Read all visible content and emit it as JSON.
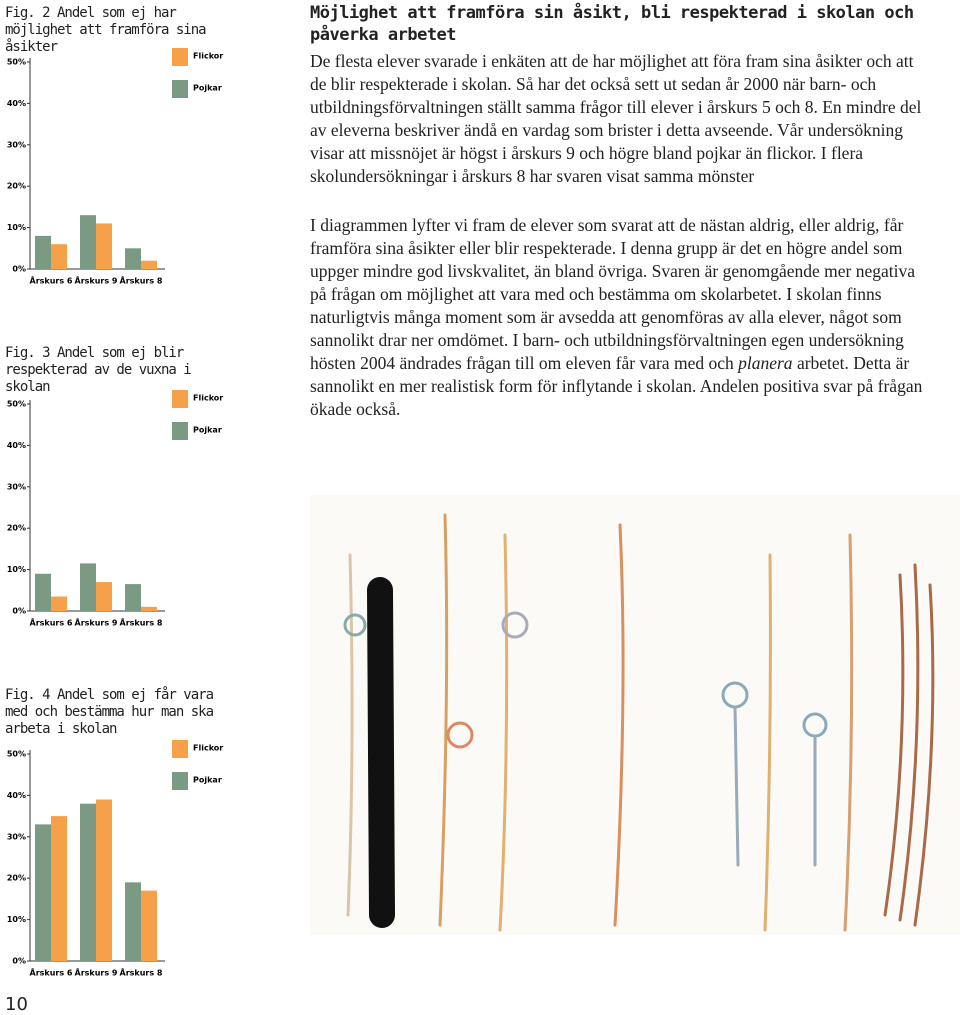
{
  "page_number": "10",
  "figures": [
    {
      "caption": "Fig. 2 Andel som ej har möjlighet att framföra sina åsikter",
      "chart": {
        "type": "bar",
        "categories": [
          "Årskurs 6",
          "Årskurs 9",
          "Årskurs 8"
        ],
        "series": [
          {
            "name": "Flickor",
            "color": "#f7a04a",
            "values": [
              6,
              11,
              2
            ]
          },
          {
            "name": "Pojkar",
            "color": "#7a9a84",
            "values": [
              8,
              13,
              5
            ]
          }
        ],
        "ylim": [
          0,
          50
        ],
        "yticks": [
          {
            "value": 0,
            "label": "0%"
          },
          {
            "value": 10,
            "label": "10%"
          },
          {
            "value": 20,
            "label": "20%"
          },
          {
            "value": 30,
            "label": "30%"
          },
          {
            "value": 40,
            "label": "40%"
          },
          {
            "value": 50,
            "label": "50%"
          }
        ]
      }
    },
    {
      "caption": "Fig. 3 Andel som ej blir respekterad av de vuxna i skolan",
      "chart": {
        "type": "bar",
        "categories": [
          "Årskurs 6",
          "Årskurs 9",
          "Årskurs 8"
        ],
        "series": [
          {
            "name": "Flickor",
            "color": "#f7a04a",
            "values": [
              3.5,
              7,
              1
            ]
          },
          {
            "name": "Pojkar",
            "color": "#7a9a84",
            "values": [
              9,
              11.5,
              6.5
            ]
          }
        ],
        "ylim": [
          0,
          50
        ],
        "yticks": [
          {
            "value": 0,
            "label": "0%"
          },
          {
            "value": 10,
            "label": "10%"
          },
          {
            "value": 20,
            "label": "20%"
          },
          {
            "value": 30,
            "label": "30%"
          },
          {
            "value": 40,
            "label": "40%"
          },
          {
            "value": 50,
            "label": "50%"
          }
        ]
      }
    },
    {
      "caption": "Fig. 4 Andel som ej får vara med och bestämma hur man ska arbeta i skolan",
      "chart": {
        "type": "bar",
        "categories": [
          "Årskurs 6",
          "Årskurs 9",
          "Årskurs 8"
        ],
        "series": [
          {
            "name": "Flickor",
            "color": "#f7a04a",
            "values": [
              35,
              39,
              17
            ]
          },
          {
            "name": "Pojkar",
            "color": "#7a9a84",
            "values": [
              33,
              38,
              19
            ]
          }
        ],
        "ylim": [
          0,
          50
        ],
        "yticks": [
          {
            "value": 0,
            "label": "0%"
          },
          {
            "value": 10,
            "label": "10%"
          },
          {
            "value": 20,
            "label": "20%"
          },
          {
            "value": 30,
            "label": "30%"
          },
          {
            "value": 40,
            "label": "40%"
          },
          {
            "value": 50,
            "label": "50%"
          }
        ]
      }
    }
  ],
  "article": {
    "title": "Möjlighet att framföra sin åsikt, bli respekterad i skolan och påverka arbetet",
    "paragraph_1": "De flesta elever svarade i enkäten att de har möjlighet att föra fram sina åsikter och att de blir respekterade i skolan. Så har det också sett ut sedan år 2000 när barn- och utbildningsförvaltningen ställt samma frågor till elever i årskurs 5 och 8. En mindre del av eleverna beskriver ändå en vardag som brister i detta avseende. Vår undersökning visar att missnöjet är högst i årskurs 9 och högre bland pojkar än flickor. I flera skolundersökningar i årskurs 8 har svaren visat samma mönster",
    "paragraph_2": {
      "before": "I diagrammen lyfter vi fram de elever som svarat att de nästan aldrig, eller aldrig, får framföra sina åsikter eller blir respekterade. I denna grupp är det en högre andel som uppger mindre god livskvalitet, än bland övriga. Svaren är genomgående mer negativa på frågan om möjlighet att vara med och bestämma om skolarbetet. I skolan finns naturligtvis många moment som är avsedda att genomföras av alla elever, något som sannolikt drar ner omdömet. I barn- och utbildningsförvaltningen egen undersökning hösten 2004 ändrades frågan till om eleven får vara med och ",
      "emphasis": "planera",
      "after": " arbetet. Detta är sannolikt en mer realistisk form för inflytande i skolan. Andelen positiva svar på frågan ökade också."
    }
  }
}
